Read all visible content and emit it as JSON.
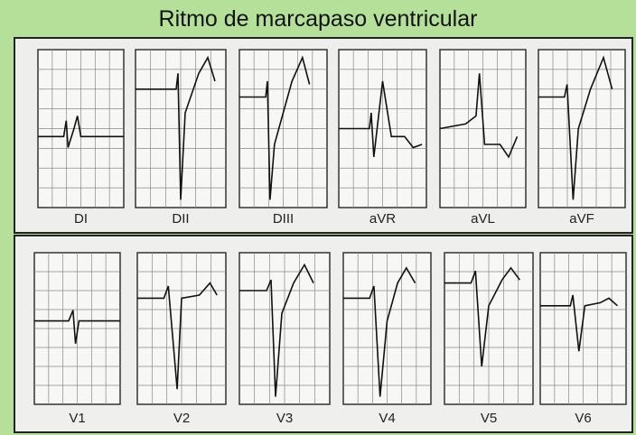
{
  "title": "Ritmo de marcapaso ventricular",
  "panels": [
    {
      "leads": [
        "DI",
        "DII",
        "DIII",
        "aVR",
        "aVL",
        "aVF"
      ]
    },
    {
      "leads": [
        "V1",
        "V2",
        "V3",
        "V4",
        "V5",
        "V6"
      ]
    }
  ]
}
